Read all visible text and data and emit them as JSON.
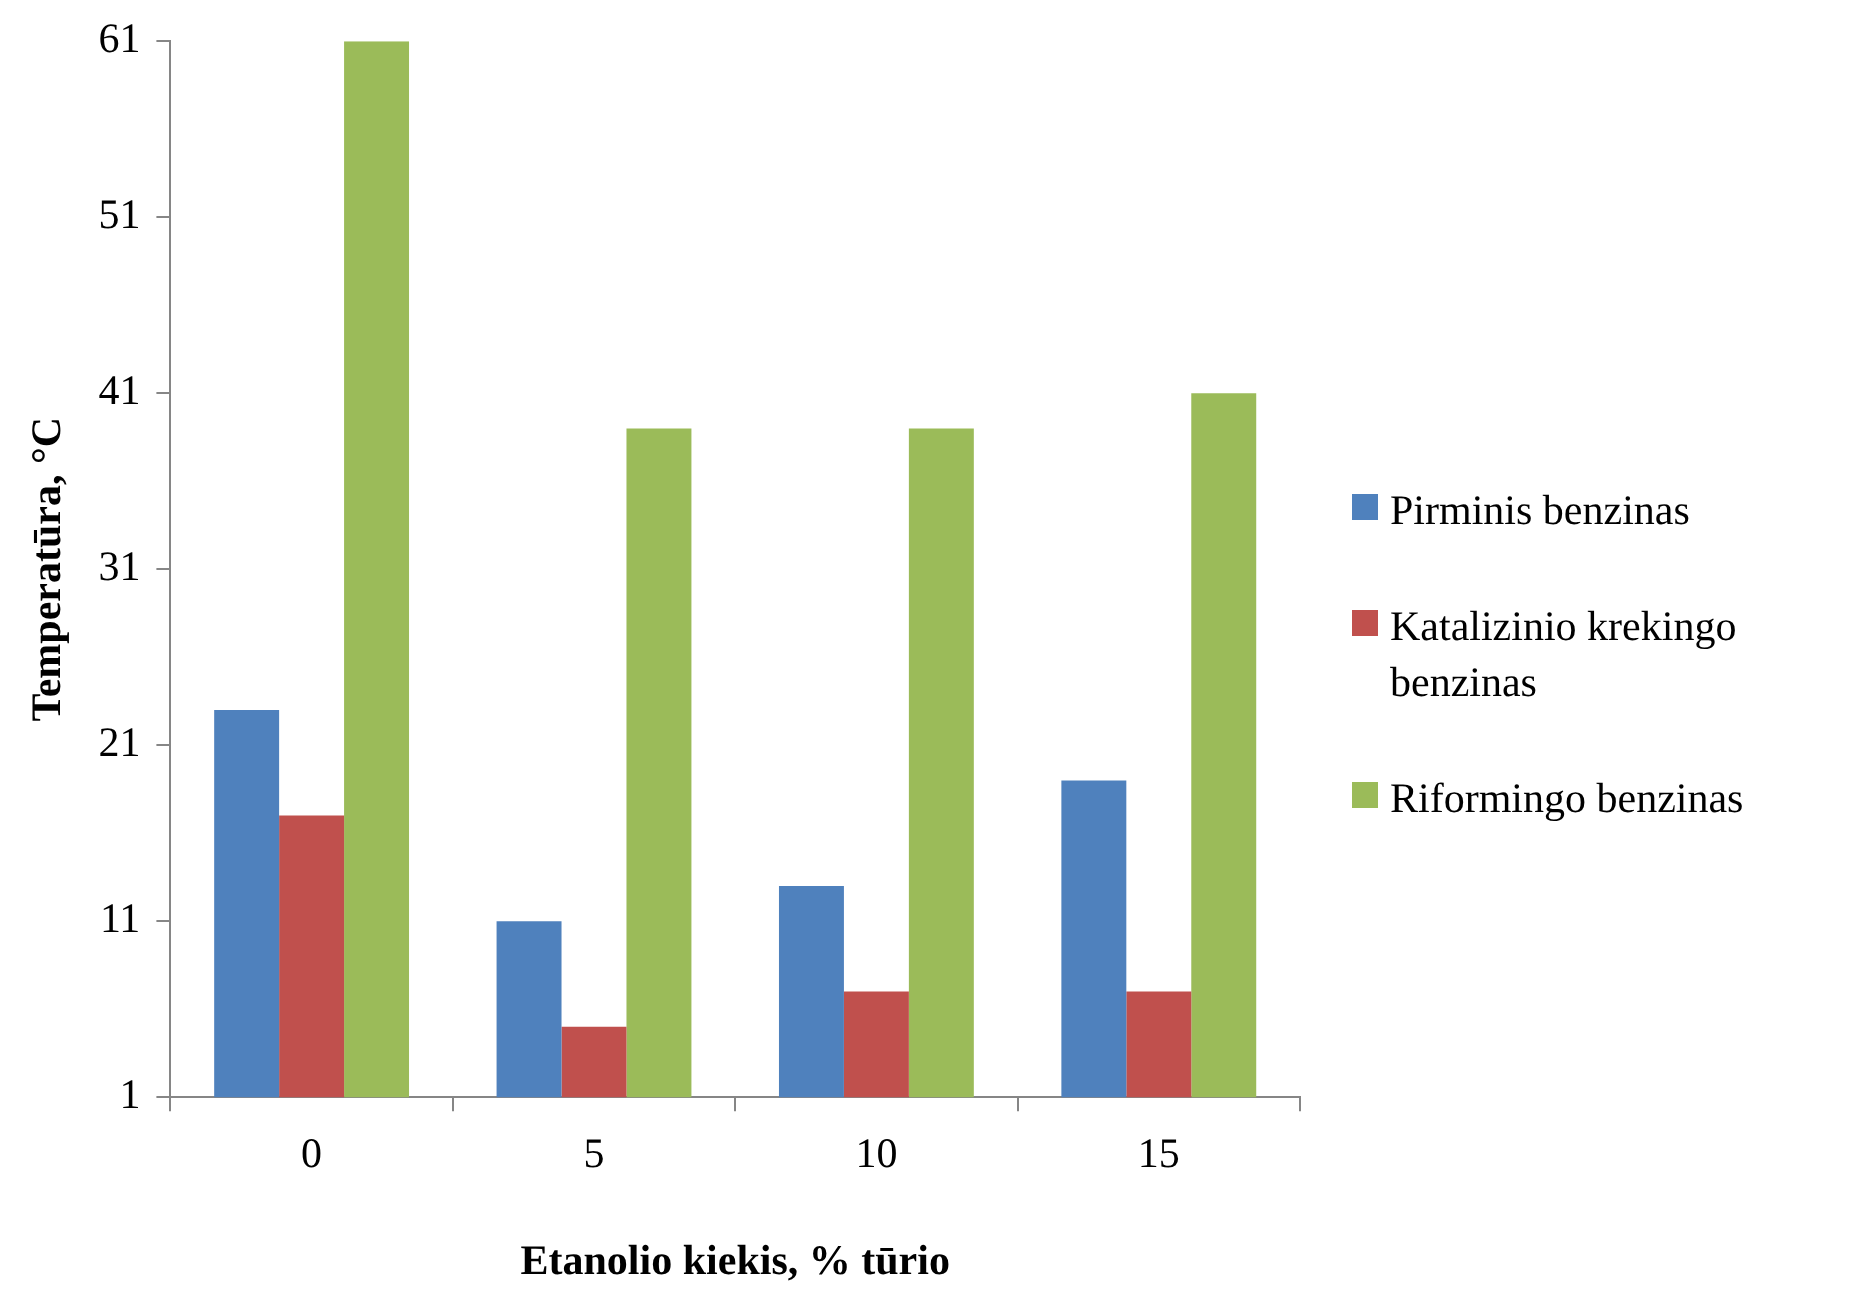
{
  "chart_data": {
    "type": "bar",
    "xlabel": "Etanolio kiekis, % tūrio",
    "ylabel": "Temperatūra, °C",
    "categories": [
      "0",
      "5",
      "10",
      "15"
    ],
    "series": [
      {
        "name": "Pirminis benzinas",
        "color": "#4f81bd",
        "values": [
          23,
          11,
          13,
          19
        ]
      },
      {
        "name": "Katalizinio krekingo benzinas",
        "color": "#c0504d",
        "values": [
          17,
          5,
          7,
          7
        ]
      },
      {
        "name": "Riformingo benzinas",
        "color": "#9bbb59",
        "values": [
          61,
          39,
          39,
          41
        ]
      }
    ],
    "ylim": [
      1,
      61
    ],
    "yticks": [
      1,
      11,
      21,
      31,
      41,
      51,
      61
    ],
    "grid": false,
    "legend": "right"
  }
}
